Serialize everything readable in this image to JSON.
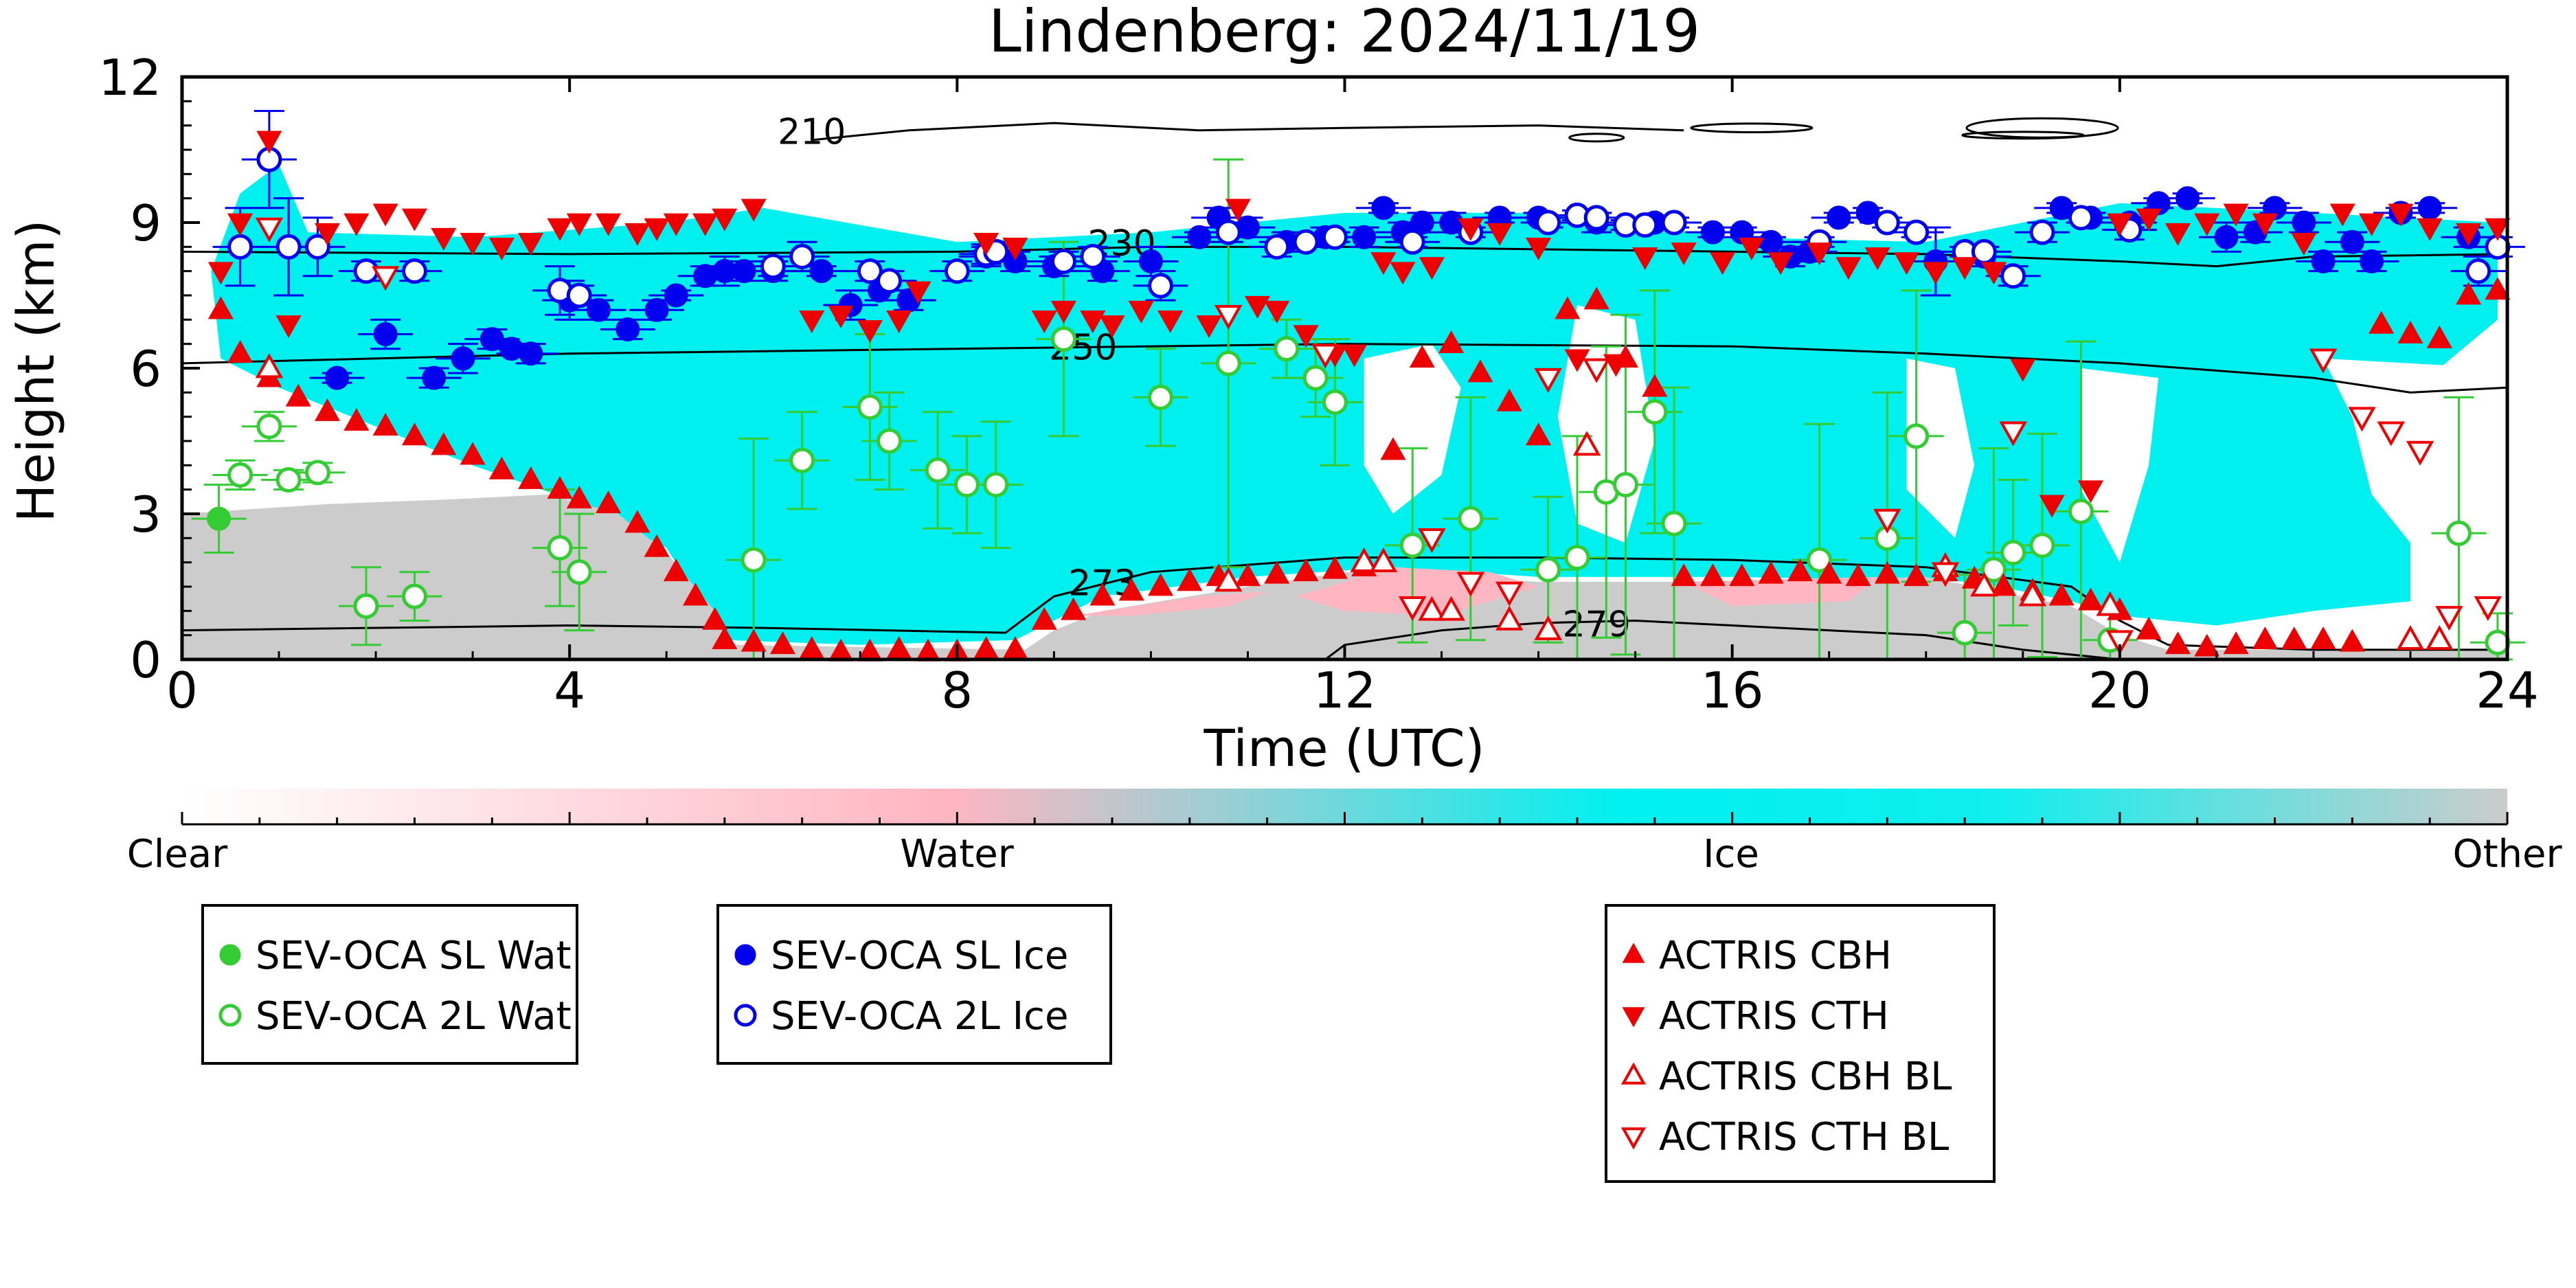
{
  "chart_data": {
    "type": "scatter",
    "title": "Lindenberg: 2024/11/19",
    "xlabel": "Time (UTC)",
    "ylabel": "Height (km)",
    "xlim": [
      0,
      24
    ],
    "ylim": [
      0,
      12
    ],
    "x_ticks": [
      "0",
      "4",
      "8",
      "12",
      "16",
      "20",
      "24"
    ],
    "y_ticks": [
      "0",
      "3",
      "6",
      "9",
      "12"
    ],
    "grid": false,
    "background_classification": {
      "colorbar_labels": [
        "Clear",
        "Water",
        "Ice",
        "Other"
      ],
      "colors": {
        "clear": "#ffffff",
        "water": "#ffb6c1",
        "ice": "#00f0f0",
        "other": "#cccccc"
      }
    },
    "temperature_contours": [
      {
        "label": "210",
        "x": [
          6.5,
          7.5,
          9,
          10.5,
          12,
          14,
          15.5
        ],
        "y": [
          10.7,
          10.9,
          11.05,
          10.9,
          10.95,
          11,
          10.9
        ]
      },
      {
        "label": "230",
        "x": [
          0,
          4,
          8,
          10,
          12,
          14,
          16,
          18,
          20,
          21,
          22,
          24
        ],
        "y": [
          8.4,
          8.35,
          8.4,
          8.5,
          8.5,
          8.45,
          8.4,
          8.35,
          8.2,
          8.1,
          8.3,
          8.35
        ]
      },
      {
        "label": "250",
        "x": [
          0,
          4,
          8,
          12,
          16,
          18,
          20,
          22,
          23,
          24
        ],
        "y": [
          6.1,
          6.3,
          6.4,
          6.5,
          6.45,
          6.3,
          6.1,
          5.8,
          5.5,
          5.6
        ]
      },
      {
        "label": "273",
        "x": [
          0,
          4,
          6,
          8.5,
          9,
          10,
          12,
          14,
          16,
          18,
          19.5,
          20,
          20.5,
          22,
          24
        ],
        "y": [
          0.6,
          0.7,
          0.65,
          0.55,
          1.3,
          1.8,
          2.1,
          2.1,
          2.05,
          1.9,
          1.5,
          0.8,
          0.3,
          0.2,
          0.2
        ]
      },
      {
        "label": "279",
        "x": [
          11.8,
          12,
          13,
          14,
          15,
          16,
          17,
          18,
          19,
          20
        ],
        "y": [
          0,
          0.3,
          0.6,
          0.75,
          0.8,
          0.7,
          0.6,
          0.5,
          0.2,
          0
        ]
      }
    ],
    "series": [
      {
        "name": "SEV-OCA SL Wat",
        "marker": "circle-filled",
        "color": "#33cc33",
        "x": [
          0.38
        ],
        "y": [
          2.9
        ],
        "err": [
          0.7
        ]
      },
      {
        "name": "SEV-OCA 2L Wat",
        "marker": "circle-open",
        "color": "#33cc33",
        "x": [
          0.6,
          0.9,
          1.1,
          1.4,
          1.9,
          2.4,
          3.9,
          4.1,
          5.9,
          6.4,
          7.1,
          7.3,
          7.8,
          8.1,
          8.4,
          9.1,
          10.1,
          10.8,
          11.4,
          11.7,
          11.9,
          12.7,
          13.3,
          14.1,
          14.4,
          14.7,
          14.9,
          15.2,
          15.4,
          16.9,
          17.6,
          17.9,
          18.4,
          18.7,
          18.9,
          19.2,
          19.6,
          19.9,
          23.5,
          23.9
        ],
        "y": [
          3.8,
          4.8,
          3.7,
          3.85,
          1.1,
          1.3,
          2.3,
          1.8,
          2.05,
          4.1,
          5.2,
          4.5,
          3.9,
          3.6,
          3.6,
          6.6,
          5.4,
          6.1,
          6.4,
          5.8,
          5.3,
          2.35,
          2.9,
          1.85,
          2.1,
          3.45,
          3.6,
          5.1,
          2.8,
          2.05,
          2.5,
          4.6,
          0.55,
          1.85,
          2.2,
          2.35,
          3.05,
          0.4,
          2.6,
          0.35
        ],
        "err": [
          0.3,
          0.3,
          0.2,
          0.2,
          0.8,
          0.5,
          1.2,
          1.2,
          2.5,
          1.0,
          1.5,
          1.0,
          1.2,
          1.0,
          1.3,
          2.0,
          1.0,
          4.2,
          0.6,
          0.8,
          1.3,
          2.0,
          2.5,
          1.5,
          2.5,
          3.0,
          3.5,
          2.5,
          2.8,
          2.8,
          3.0,
          3.0,
          1.2,
          2.5,
          1.5,
          2.3,
          3.5,
          0.7,
          2.8,
          0.6
        ]
      },
      {
        "name": "SEV-OCA SL Ice",
        "marker": "circle-filled",
        "color": "#0000ee",
        "x": [
          1.6,
          2.1,
          2.6,
          2.9,
          3.2,
          3.4,
          3.6,
          4.0,
          4.3,
          4.6,
          4.9,
          5.1,
          5.4,
          5.6,
          5.8,
          6.1,
          6.6,
          6.9,
          7.2,
          7.5,
          8.3,
          8.6,
          9.0,
          9.5,
          10.0,
          10.5,
          10.7,
          11.0,
          11.4,
          11.8,
          12.2,
          12.4,
          12.6,
          12.8,
          13.1,
          13.6,
          14.0,
          14.6,
          15.2,
          15.8,
          16.1,
          16.4,
          16.6,
          16.8,
          17.1,
          17.4,
          18.1,
          18.6,
          19.4,
          19.7,
          20.1,
          20.4,
          20.7,
          21.1,
          21.4,
          21.6,
          21.9,
          22.1,
          22.4,
          22.6,
          22.9,
          23.2,
          23.6
        ],
        "y": [
          5.8,
          6.7,
          5.8,
          6.2,
          6.6,
          6.4,
          6.3,
          7.4,
          7.2,
          6.8,
          7.2,
          7.5,
          7.9,
          8.0,
          8.0,
          8.0,
          8.0,
          7.3,
          7.6,
          7.4,
          8.3,
          8.2,
          8.1,
          8.0,
          8.2,
          8.7,
          9.1,
          8.9,
          8.6,
          8.7,
          8.7,
          9.3,
          8.8,
          9.0,
          9.0,
          9.1,
          9.1,
          9.0,
          9.0,
          8.8,
          8.8,
          8.6,
          8.3,
          8.4,
          9.1,
          9.2,
          8.2,
          8.3,
          9.3,
          9.1,
          9.0,
          9.4,
          9.5,
          8.7,
          8.8,
          9.3,
          9.0,
          8.2,
          8.6,
          8.2,
          9.2,
          9.3,
          8.7
        ],
        "err": [
          0.1,
          0.3,
          0.2,
          0.3,
          0.2,
          0.1,
          0.2,
          0.4,
          0.2,
          0.2,
          0.2,
          0.1,
          0.2,
          0.3,
          0.2,
          0.2,
          0.1,
          0.3,
          0.2,
          0.2,
          0.2,
          0.2,
          0.2,
          0.2,
          0.3,
          0.1,
          0.2,
          0.2,
          0.2,
          0.2,
          0.2,
          0.1,
          0.2,
          0.2,
          0.2,
          0.1,
          0.1,
          0.2,
          0.1,
          0.1,
          0.1,
          0.1,
          0.2,
          0.2,
          0.1,
          0.1,
          0.7,
          0.2,
          0.1,
          0.1,
          0.1,
          0.1,
          0.1,
          0.3,
          0.2,
          0.1,
          0.2,
          0.2,
          0.2,
          0.2,
          0.1,
          0.1,
          0.2
        ],
        "dir_error": [
          0.2,
          0.3,
          0.3,
          0.3,
          0.2,
          0.2,
          0.2,
          0.3,
          0.3,
          0.3,
          0.3,
          0.3,
          0.2,
          0.3,
          0.2,
          0.2,
          0.2,
          0.3,
          0.3,
          0.3,
          0.3,
          0.2,
          0.2,
          0.2,
          0.2,
          0.2,
          0.2,
          0.2,
          0.2,
          0.2,
          0.2,
          0.2,
          0.2,
          0.2,
          0.2,
          0.2,
          0.2,
          0.2,
          0.2,
          0.2,
          0.2,
          0.2,
          0.2,
          0.2,
          0.2,
          0.2,
          0.2,
          0.2,
          0.2,
          0.2,
          0.2,
          0.2,
          0.2,
          0.2,
          0.2,
          0.2,
          0.2,
          0.2,
          0.2,
          0.2,
          0.2,
          0.2,
          0.2
        ]
      },
      {
        "name": "SEV-OCA 2L Ice",
        "marker": "circle-open",
        "color": "#0000ee",
        "x": [
          0.6,
          0.9,
          1.1,
          1.4,
          1.9,
          2.4,
          3.9,
          4.1,
          6.1,
          6.4,
          7.1,
          7.3,
          8.0,
          8.3,
          8.4,
          9.1,
          9.4,
          10.1,
          10.8,
          11.3,
          11.6,
          11.9,
          12.7,
          13.3,
          14.1,
          14.4,
          14.6,
          14.9,
          15.1,
          15.4,
          16.9,
          17.6,
          17.9,
          18.4,
          18.6,
          18.9,
          19.2,
          19.6,
          20.1,
          23.7,
          23.9
        ],
        "y": [
          8.5,
          10.3,
          8.5,
          8.5,
          8.0,
          8.0,
          7.6,
          7.5,
          8.1,
          8.3,
          8.0,
          7.8,
          8.0,
          8.35,
          8.4,
          8.2,
          8.3,
          7.7,
          8.8,
          8.5,
          8.6,
          8.7,
          8.6,
          8.8,
          9.0,
          9.15,
          9.1,
          8.95,
          8.95,
          9.0,
          8.6,
          9.0,
          8.8,
          8.4,
          8.4,
          7.9,
          8.8,
          9.1,
          8.85,
          8.0,
          8.5
        ],
        "err": [
          0.8,
          1.0,
          1.0,
          0.6,
          0.2,
          0.2,
          0.5,
          0.2,
          0.2,
          0.3,
          0.2,
          0.2,
          0.2,
          0.2,
          0.2,
          0.2,
          0.2,
          0.3,
          0.2,
          0.2,
          0.1,
          0.1,
          0.1,
          0.1,
          0.1,
          0.1,
          0.1,
          0.1,
          0.1,
          0.1,
          0.1,
          0.1,
          0.1,
          0.1,
          0.1,
          0.2,
          0.2,
          0.1,
          0.2,
          0.3,
          0.2
        ]
      },
      {
        "name": "ACTRIS CBH",
        "marker": "triangle-up-filled",
        "color": "#ee0000",
        "x": [
          0.4,
          0.6,
          0.9,
          1.2,
          1.5,
          1.8,
          2.1,
          2.4,
          2.7,
          3.0,
          3.3,
          3.6,
          3.9,
          4.1,
          4.4,
          4.7,
          4.9,
          5.1,
          5.3,
          5.5,
          5.6,
          5.9,
          6.2,
          6.5,
          6.8,
          7.1,
          7.4,
          7.7,
          8.0,
          8.3,
          8.6,
          8.9,
          9.2,
          9.5,
          9.8,
          10.1,
          10.4,
          10.7,
          11.0,
          11.3,
          11.6,
          11.9,
          12.2,
          12.5,
          12.8,
          13.1,
          13.4,
          13.7,
          14.0,
          14.3,
          14.6,
          14.9,
          15.2,
          15.5,
          15.8,
          16.1,
          16.4,
          16.7,
          17.0,
          17.3,
          17.6,
          17.9,
          18.2,
          18.5,
          18.8,
          19.1,
          19.4,
          19.7,
          20.0,
          20.3,
          20.6,
          20.9,
          21.2,
          21.5,
          21.8,
          22.1,
          22.4,
          22.7,
          23.0,
          23.3,
          23.6,
          23.9
        ],
        "y": [
          7.2,
          6.3,
          5.8,
          5.4,
          5.1,
          4.9,
          4.8,
          4.6,
          4.4,
          4.2,
          3.9,
          3.7,
          3.5,
          3.3,
          3.2,
          2.8,
          2.3,
          1.8,
          1.3,
          0.8,
          0.4,
          0.35,
          0.3,
          0.2,
          0.15,
          0.15,
          0.2,
          0.15,
          0.15,
          0.2,
          0.2,
          0.8,
          1.0,
          1.3,
          1.4,
          1.5,
          1.6,
          1.7,
          1.7,
          1.75,
          1.8,
          1.85,
          1.9,
          4.3,
          6.2,
          6.5,
          5.9,
          5.3,
          4.6,
          7.2,
          7.4,
          6.2,
          5.6,
          1.7,
          1.7,
          1.7,
          1.75,
          1.8,
          1.75,
          1.7,
          1.75,
          1.7,
          1.8,
          1.65,
          1.5,
          1.4,
          1.3,
          1.2,
          1.0,
          0.6,
          0.3,
          0.25,
          0.3,
          0.4,
          0.4,
          0.4,
          0.35,
          6.9,
          6.7,
          6.6,
          7.5,
          7.6
        ],
        "visible_gap_note": ""
      },
      {
        "name": "ACTRIS CTH",
        "marker": "triangle-down-filled",
        "color": "#ee0000",
        "x": [
          0.4,
          0.6,
          0.9,
          1.1,
          1.5,
          1.8,
          2.1,
          2.4,
          2.7,
          3.0,
          3.3,
          3.6,
          3.9,
          4.1,
          4.4,
          4.7,
          4.9,
          5.1,
          5.4,
          5.6,
          5.9,
          6.5,
          6.8,
          7.1,
          7.4,
          7.6,
          8.3,
          8.6,
          8.9,
          9.1,
          9.4,
          9.6,
          9.9,
          10.2,
          10.6,
          10.9,
          11.1,
          11.3,
          11.6,
          11.9,
          12.1,
          12.4,
          12.6,
          12.9,
          13.3,
          13.6,
          14.0,
          14.4,
          14.8,
          15.1,
          15.5,
          15.9,
          16.2,
          16.5,
          16.9,
          17.2,
          17.5,
          17.8,
          18.1,
          18.4,
          18.7,
          19.0,
          19.3,
          19.7,
          20.0,
          20.3,
          20.6,
          20.9,
          21.2,
          21.5,
          21.9,
          22.3,
          22.6,
          22.9,
          23.2,
          23.6,
          23.9
        ],
        "y": [
          8.0,
          9.0,
          10.7,
          6.9,
          8.8,
          9.0,
          9.2,
          9.1,
          8.7,
          8.6,
          8.5,
          8.6,
          8.9,
          9.0,
          9.0,
          8.8,
          8.9,
          9.0,
          9.0,
          9.1,
          9.3,
          7.0,
          7.1,
          6.8,
          7.0,
          7.6,
          8.6,
          8.5,
          7.0,
          7.2,
          7.0,
          6.9,
          7.2,
          7.0,
          6.9,
          9.3,
          7.3,
          7.2,
          6.7,
          6.3,
          6.3,
          8.2,
          8.0,
          8.1,
          8.9,
          8.8,
          8.5,
          6.2,
          6.1,
          8.3,
          8.4,
          8.2,
          8.5,
          8.2,
          8.4,
          8.1,
          8.3,
          8.2,
          8.0,
          8.1,
          8.0,
          6.0,
          3.2,
          3.5,
          9.0,
          9.1,
          8.8,
          9.0,
          9.2,
          9.0,
          8.6,
          9.2,
          9.0,
          9.2,
          8.9,
          8.8,
          8.9
        ]
      },
      {
        "name": "ACTRIS CBH BL",
        "marker": "triangle-up-open",
        "color": "#ee0000",
        "x": [
          0.9,
          10.8,
          12.2,
          12.4,
          12.9,
          13.1,
          13.7,
          14.1,
          14.5,
          18.2,
          18.6,
          19.1,
          19.9,
          23.0,
          23.3
        ],
        "y": [
          6.0,
          1.6,
          2.0,
          2.0,
          1.0,
          1.0,
          0.8,
          0.6,
          4.4,
          1.9,
          1.5,
          1.3,
          1.1,
          0.4,
          0.4
        ]
      },
      {
        "name": "ACTRIS CTH BL",
        "marker": "triangle-down-open",
        "color": "#ee0000",
        "x": [
          0.9,
          2.1,
          10.8,
          11.8,
          12.7,
          12.9,
          13.3,
          13.7,
          14.1,
          14.6,
          17.6,
          18.2,
          18.9,
          20.0,
          22.1,
          22.5,
          22.8,
          23.1,
          23.4,
          23.8
        ],
        "y": [
          8.9,
          7.9,
          7.1,
          6.3,
          1.1,
          2.5,
          1.6,
          1.4,
          5.8,
          6.0,
          2.9,
          1.8,
          4.7,
          0.4,
          6.2,
          5.0,
          4.7,
          4.3,
          0.9,
          1.1
        ]
      }
    ],
    "legend_groups": [
      [
        "SEV-OCA SL Wat",
        "SEV-OCA 2L Wat"
      ],
      [
        "SEV-OCA SL Ice",
        "SEV-OCA 2L Ice"
      ],
      [
        "ACTRIS CBH",
        "ACTRIS CTH",
        "ACTRIS CBH BL",
        "ACTRIS CTH BL"
      ]
    ],
    "legend_placement": "below"
  }
}
